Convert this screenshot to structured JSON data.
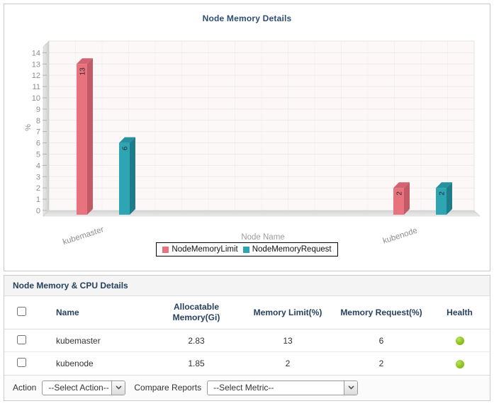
{
  "chart_data": {
    "type": "bar",
    "title": "Node Memory Details",
    "categories": [
      "kubemaster",
      "kubenode"
    ],
    "series": [
      {
        "name": "NodeMemoryLimit",
        "values": [
          13,
          2
        ],
        "color": "#e9727f",
        "side_color": "#c25b68",
        "top_color": "#d26370"
      },
      {
        "name": "NodeMemoryRequest",
        "values": [
          6,
          2
        ],
        "color": "#2ea5b3",
        "side_color": "#1e7d8b",
        "top_color": "#27919f"
      }
    ],
    "xlabel": "Node Name",
    "ylabel": "%",
    "ylim": [
      0,
      14
    ],
    "y_tick_step": 1,
    "grid": true,
    "legend_position": "bottom",
    "bar_value_labels": true
  },
  "table": {
    "title": "Node Memory & CPU Details",
    "columns": [
      "Name",
      "Allocatable Memory(Gi)",
      "Memory Limit(%)",
      "Memory Request(%)",
      "Health"
    ],
    "rows": [
      {
        "name": "kubemaster",
        "allocatable_memory_gi": "2.83",
        "memory_limit_pct": "13",
        "memory_request_pct": "6",
        "health": "good"
      },
      {
        "name": "kubenode",
        "allocatable_memory_gi": "1.85",
        "memory_limit_pct": "2",
        "memory_request_pct": "2",
        "health": "good"
      }
    ]
  },
  "footer": {
    "action_label": "Action",
    "action_value": "--Select Action--",
    "compare_label": "Compare Reports",
    "compare_value": "--Select Metric--"
  },
  "colors": {
    "title_navy": "#2e4d73",
    "limit_red": "#e9727f",
    "request_teal": "#2ea5b3",
    "health_green": "#8cc41e"
  }
}
